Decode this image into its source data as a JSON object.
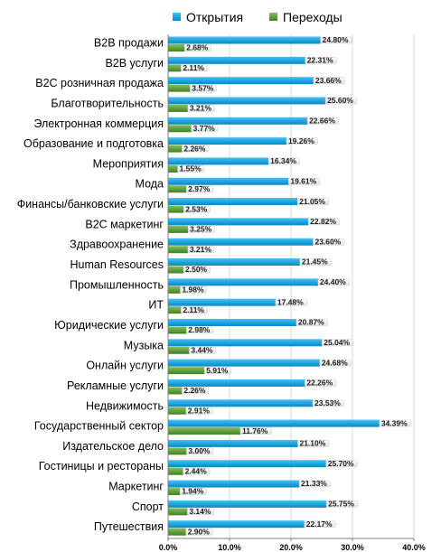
{
  "chart_data": {
    "type": "bar",
    "orientation": "horizontal",
    "categories": [
      "B2B продажи",
      "B2B услуги",
      "B2C розничная продажа",
      "Благотворительность",
      "Электронная коммерция",
      "Образование и подготовка",
      "Мероприятия",
      "Мода",
      "Финансы/банковские услуги",
      "B2C маркетинг",
      "Здравоохранение",
      "Human Resources",
      "Промышленность",
      "ИТ",
      "Юридические услуги",
      "Музыка",
      "Онлайн услуги",
      "Рекламные услуги",
      "Недвижимость",
      "Государственный сектор",
      "Издательское дело",
      "Гостиницы и рестораны",
      "Маркетинг",
      "Спорт",
      "Путешествия"
    ],
    "series": [
      {
        "name": "Открытия",
        "color": "#1aa4e0",
        "values": [
          24.8,
          22.31,
          23.66,
          25.6,
          22.66,
          19.26,
          16.34,
          19.61,
          21.05,
          22.82,
          23.6,
          21.45,
          24.4,
          17.48,
          20.87,
          25.04,
          24.68,
          22.26,
          23.53,
          34.39,
          21.1,
          25.7,
          21.33,
          25.75,
          22.17
        ],
        "labels": [
          "24.80%",
          "22.31%",
          "23.66%",
          "25.60%",
          "22.66%",
          "19.26%",
          "16.34%",
          "19.61%",
          "21.05%",
          "22.82%",
          "23.60%",
          "21.45%",
          "24.40%",
          "17.48%",
          "20.87%",
          "25.04%",
          "24.68%",
          "22.26%",
          "23.53%",
          "34.39%",
          "21.10%",
          "25.70%",
          "21.33%",
          "25.75%",
          "22.17%"
        ]
      },
      {
        "name": "Переходы",
        "color": "#5f9e3c",
        "values": [
          2.68,
          2.11,
          3.57,
          3.21,
          3.77,
          2.26,
          1.55,
          2.97,
          2.53,
          3.25,
          3.21,
          2.5,
          1.98,
          2.11,
          2.98,
          3.44,
          5.91,
          2.26,
          2.91,
          11.76,
          3.0,
          2.44,
          1.94,
          3.14,
          2.9
        ],
        "labels": [
          "2.68%",
          "2.11%",
          "3.57%",
          "3.21%",
          "3.77%",
          "2.26%",
          "1.55%",
          "2.97%",
          "2.53%",
          "3.25%",
          "3.21%",
          "2.50%",
          "1.98%",
          "2.11%",
          "2.98%",
          "3.44%",
          "5.91%",
          "2.26%",
          "2.91%",
          "11.76%",
          "3.00%",
          "2.44%",
          "1.94%",
          "3.14%",
          "2.90%"
        ]
      }
    ],
    "xlim": [
      0,
      40
    ],
    "xticks": [
      "0.0%",
      "10.0%",
      "20.0%",
      "30.0%",
      "40.0%"
    ],
    "grid": true,
    "legend_position": "top"
  }
}
